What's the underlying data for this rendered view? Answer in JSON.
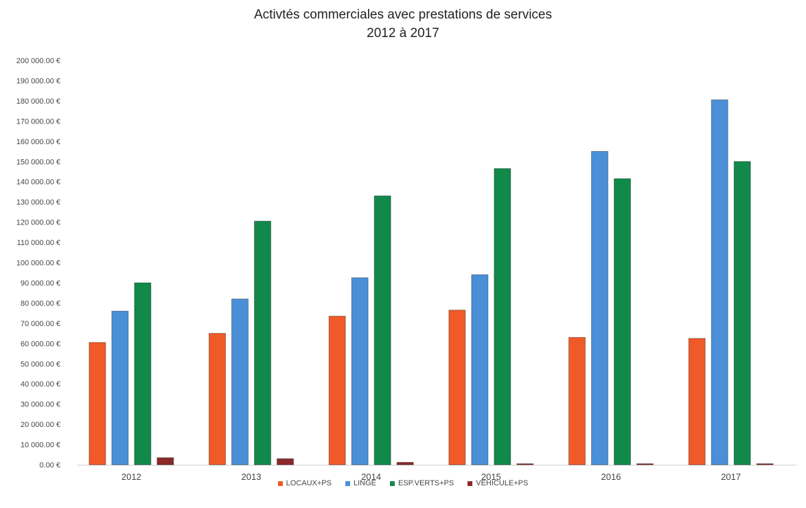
{
  "chart_data": {
    "type": "bar",
    "title": "Activtés commerciales avec prestations de services",
    "subtitle": "2012 à 2017",
    "categories": [
      "2012",
      "2013",
      "2014",
      "2015",
      "2016",
      "2017"
    ],
    "series": [
      {
        "name": "LOCAUX+PS",
        "color": "#f05a28",
        "values": [
          60500,
          65000,
          73500,
          76500,
          63000,
          62500
        ]
      },
      {
        "name": "LINGE",
        "color": "#4a8fd8",
        "values": [
          76000,
          82000,
          92500,
          94000,
          155000,
          180500
        ]
      },
      {
        "name": "ESP.VERTS+PS",
        "color": "#11894a",
        "values": [
          90000,
          120500,
          133000,
          146500,
          141500,
          150000
        ]
      },
      {
        "name": "VEHICULE+PS",
        "color": "#8b2a2a",
        "values": [
          3500,
          3000,
          1200,
          500,
          200,
          300
        ]
      }
    ],
    "ylim": [
      0,
      200000
    ],
    "yticks": [
      {
        "v": 0,
        "label": "0.00 €"
      },
      {
        "v": 10000,
        "label": "10 000.00 €"
      },
      {
        "v": 20000,
        "label": "20 000.00 €"
      },
      {
        "v": 30000,
        "label": "30 000.00 €"
      },
      {
        "v": 40000,
        "label": "40 000.00 €"
      },
      {
        "v": 50000,
        "label": "50 000.00 €"
      },
      {
        "v": 60000,
        "label": "60 000.00 €"
      },
      {
        "v": 70000,
        "label": "70 000.00 €"
      },
      {
        "v": 80000,
        "label": "80 000.00 €"
      },
      {
        "v": 90000,
        "label": "90 000.00 €"
      },
      {
        "v": 100000,
        "label": "100 000.00 €"
      },
      {
        "v": 110000,
        "label": "110 000.00 €"
      },
      {
        "v": 120000,
        "label": "120 000.00 €"
      },
      {
        "v": 130000,
        "label": "130 000.00 €"
      },
      {
        "v": 140000,
        "label": "140 000.00 €"
      },
      {
        "v": 150000,
        "label": "150 000.00 €"
      },
      {
        "v": 160000,
        "label": "160 000.00 €"
      },
      {
        "v": 170000,
        "label": "170 000.00 €"
      },
      {
        "v": 180000,
        "label": "180 000.00 €"
      },
      {
        "v": 190000,
        "label": "190 000.00 €"
      },
      {
        "v": 200000,
        "label": "200 000.00 €"
      }
    ],
    "grid": false,
    "legend_position": "bottom"
  }
}
